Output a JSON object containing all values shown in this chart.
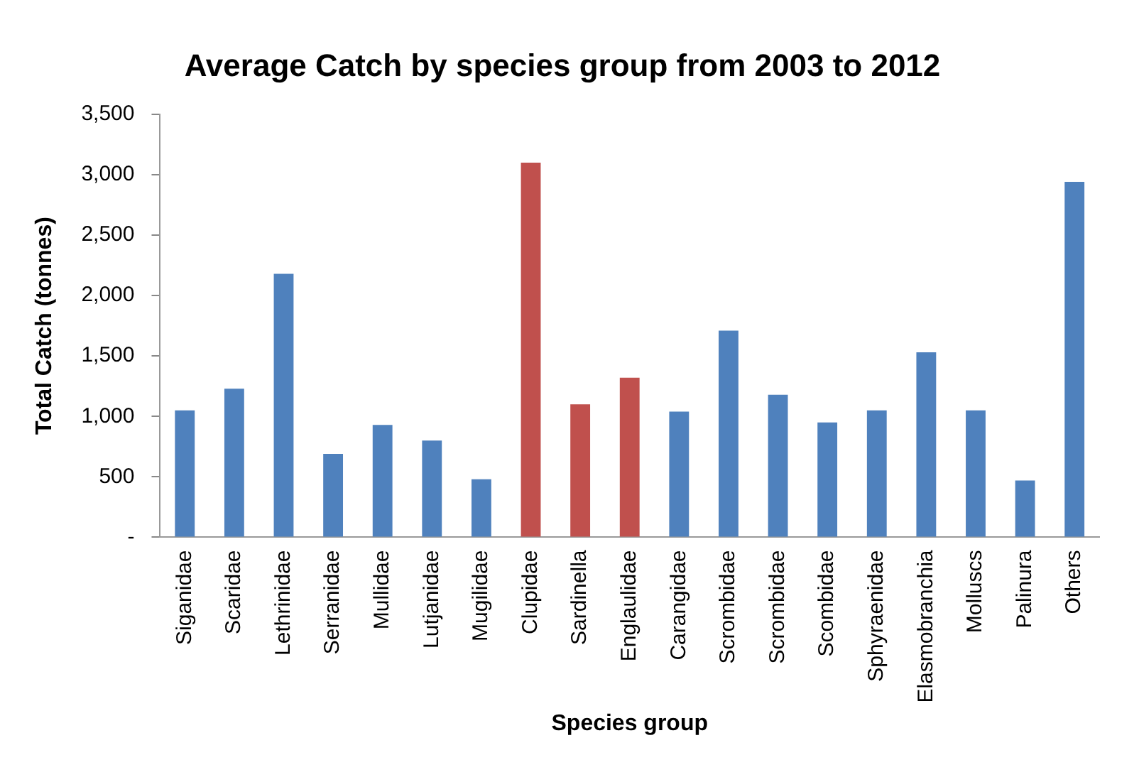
{
  "chart_data": {
    "type": "bar",
    "title": "Average Catch by species group from 2003 to 2012",
    "xlabel": "Species group",
    "ylabel": "Total Catch (tonnes)",
    "categories": [
      "Siganidae",
      "Scaridae",
      "Lethrinidae",
      "Serranidae",
      "Mullidae",
      "Lutjanidae",
      "Mugilidae",
      "Clupidae",
      "Sardinella",
      "Englaulidae",
      "Carangidae",
      "Scrombidae",
      "Scrombidae",
      "Scombidae",
      "Sphyraenidae",
      "Elasmobranchia",
      "Molluscs",
      "Palinura",
      "Others"
    ],
    "values": [
      1050,
      1230,
      2180,
      690,
      930,
      800,
      480,
      3100,
      1100,
      1320,
      1040,
      1710,
      1180,
      950,
      1050,
      1530,
      1050,
      470,
      2940
    ],
    "colors": [
      "#4f81bd",
      "#4f81bd",
      "#4f81bd",
      "#4f81bd",
      "#4f81bd",
      "#4f81bd",
      "#4f81bd",
      "#c0504d",
      "#c0504d",
      "#c0504d",
      "#4f81bd",
      "#4f81bd",
      "#4f81bd",
      "#4f81bd",
      "#4f81bd",
      "#4f81bd",
      "#4f81bd",
      "#4f81bd",
      "#4f81bd"
    ],
    "ylim": [
      0,
      3500
    ],
    "yticks": [
      {
        "value": 0,
        "label": "-"
      },
      500,
      {
        "value": 1000,
        "label": "1,000"
      },
      {
        "value": 1500,
        "label": "1,500"
      },
      {
        "value": 2000,
        "label": "2,000"
      },
      {
        "value": 2500,
        "label": "2,500"
      },
      {
        "value": 3000,
        "label": "3,000"
      },
      {
        "value": 3500,
        "label": "3,500"
      }
    ],
    "grid": false,
    "legend": false
  }
}
